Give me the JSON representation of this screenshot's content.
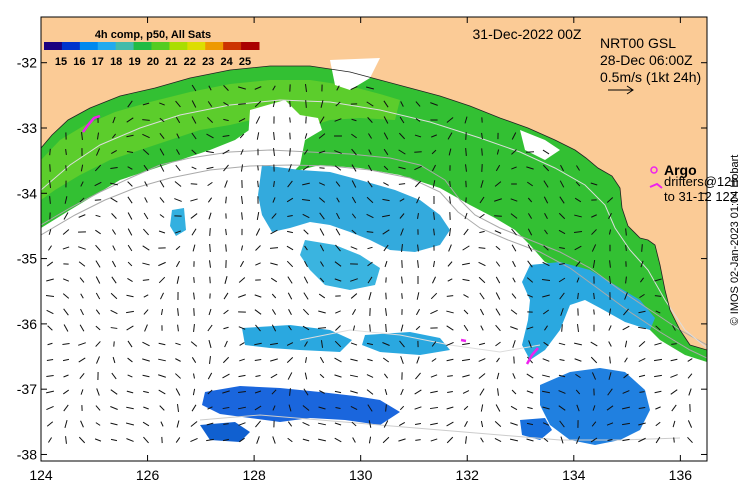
{
  "map": {
    "lon_range": [
      124,
      136.5
    ],
    "lat_range": [
      -38.1,
      -31.3
    ],
    "x_ticks": [
      "124",
      "126",
      "128",
      "130",
      "132",
      "134",
      "136"
    ],
    "y_ticks": [
      "-32",
      "-33",
      "-34",
      "-35",
      "-36",
      "-37",
      "-38"
    ],
    "land_color": "#fbcb96",
    "background_color": "#ffffff"
  },
  "legend": {
    "title": "4h comp, p50, All Sats",
    "labels": [
      "15",
      "16",
      "17",
      "18",
      "19",
      "20",
      "21",
      "22",
      "23",
      "24",
      "25"
    ],
    "colors": [
      "#1a0080",
      "#0033cc",
      "#0088ee",
      "#22aaee",
      "#44bbaa",
      "#22bb44",
      "#55cc22",
      "#aadd00",
      "#dddd00",
      "#ee9900",
      "#cc3300",
      "#aa0000"
    ]
  },
  "header": {
    "date": "31-Dec-2022 00Z"
  },
  "currents_info": {
    "line1": "NRT00 GSL",
    "line2": "28-Dec 06:00Z",
    "line3": "0.5m/s (1kt 24h)"
  },
  "argo_legend": {
    "label": "Argo",
    "drifters_line1": "drifters@12h",
    "drifters_line2": "to 31-12 12Z",
    "color": "#ee22ee"
  },
  "credit": "© IMOS 02-Jan-2023 01:04 Hobart"
}
